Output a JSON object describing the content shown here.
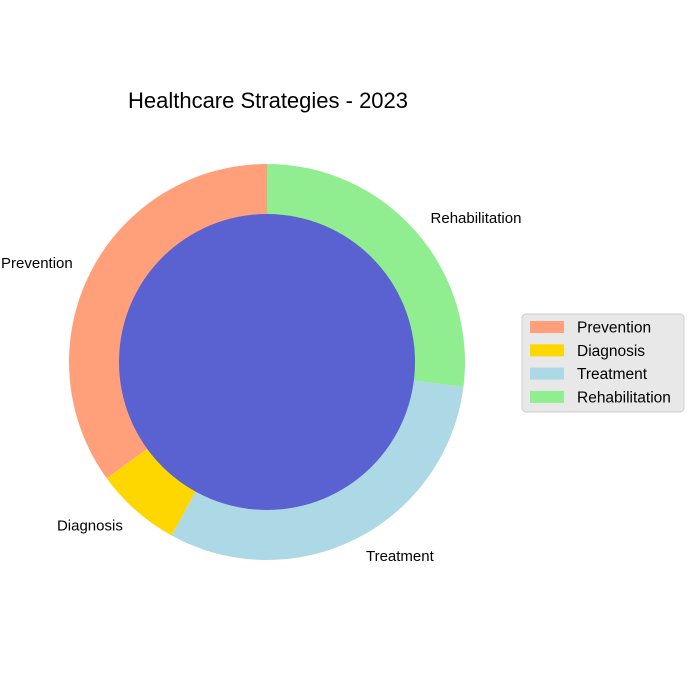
{
  "chart_data": {
    "type": "pie",
    "title": "Healthcare Strategies - 2023",
    "categories": [
      "Prevention",
      "Diagnosis",
      "Treatment",
      "Rehabilitation"
    ],
    "values": [
      35,
      7,
      31,
      27
    ],
    "colors": [
      "#ffa07a",
      "#ffd700",
      "#add8e6",
      "#90ee90"
    ],
    "center_color": "#5a61d0",
    "legend": {
      "placement": "center-right",
      "entries": [
        "Prevention",
        "Diagnosis",
        "Treatment",
        "Rehabilitation"
      ]
    }
  }
}
